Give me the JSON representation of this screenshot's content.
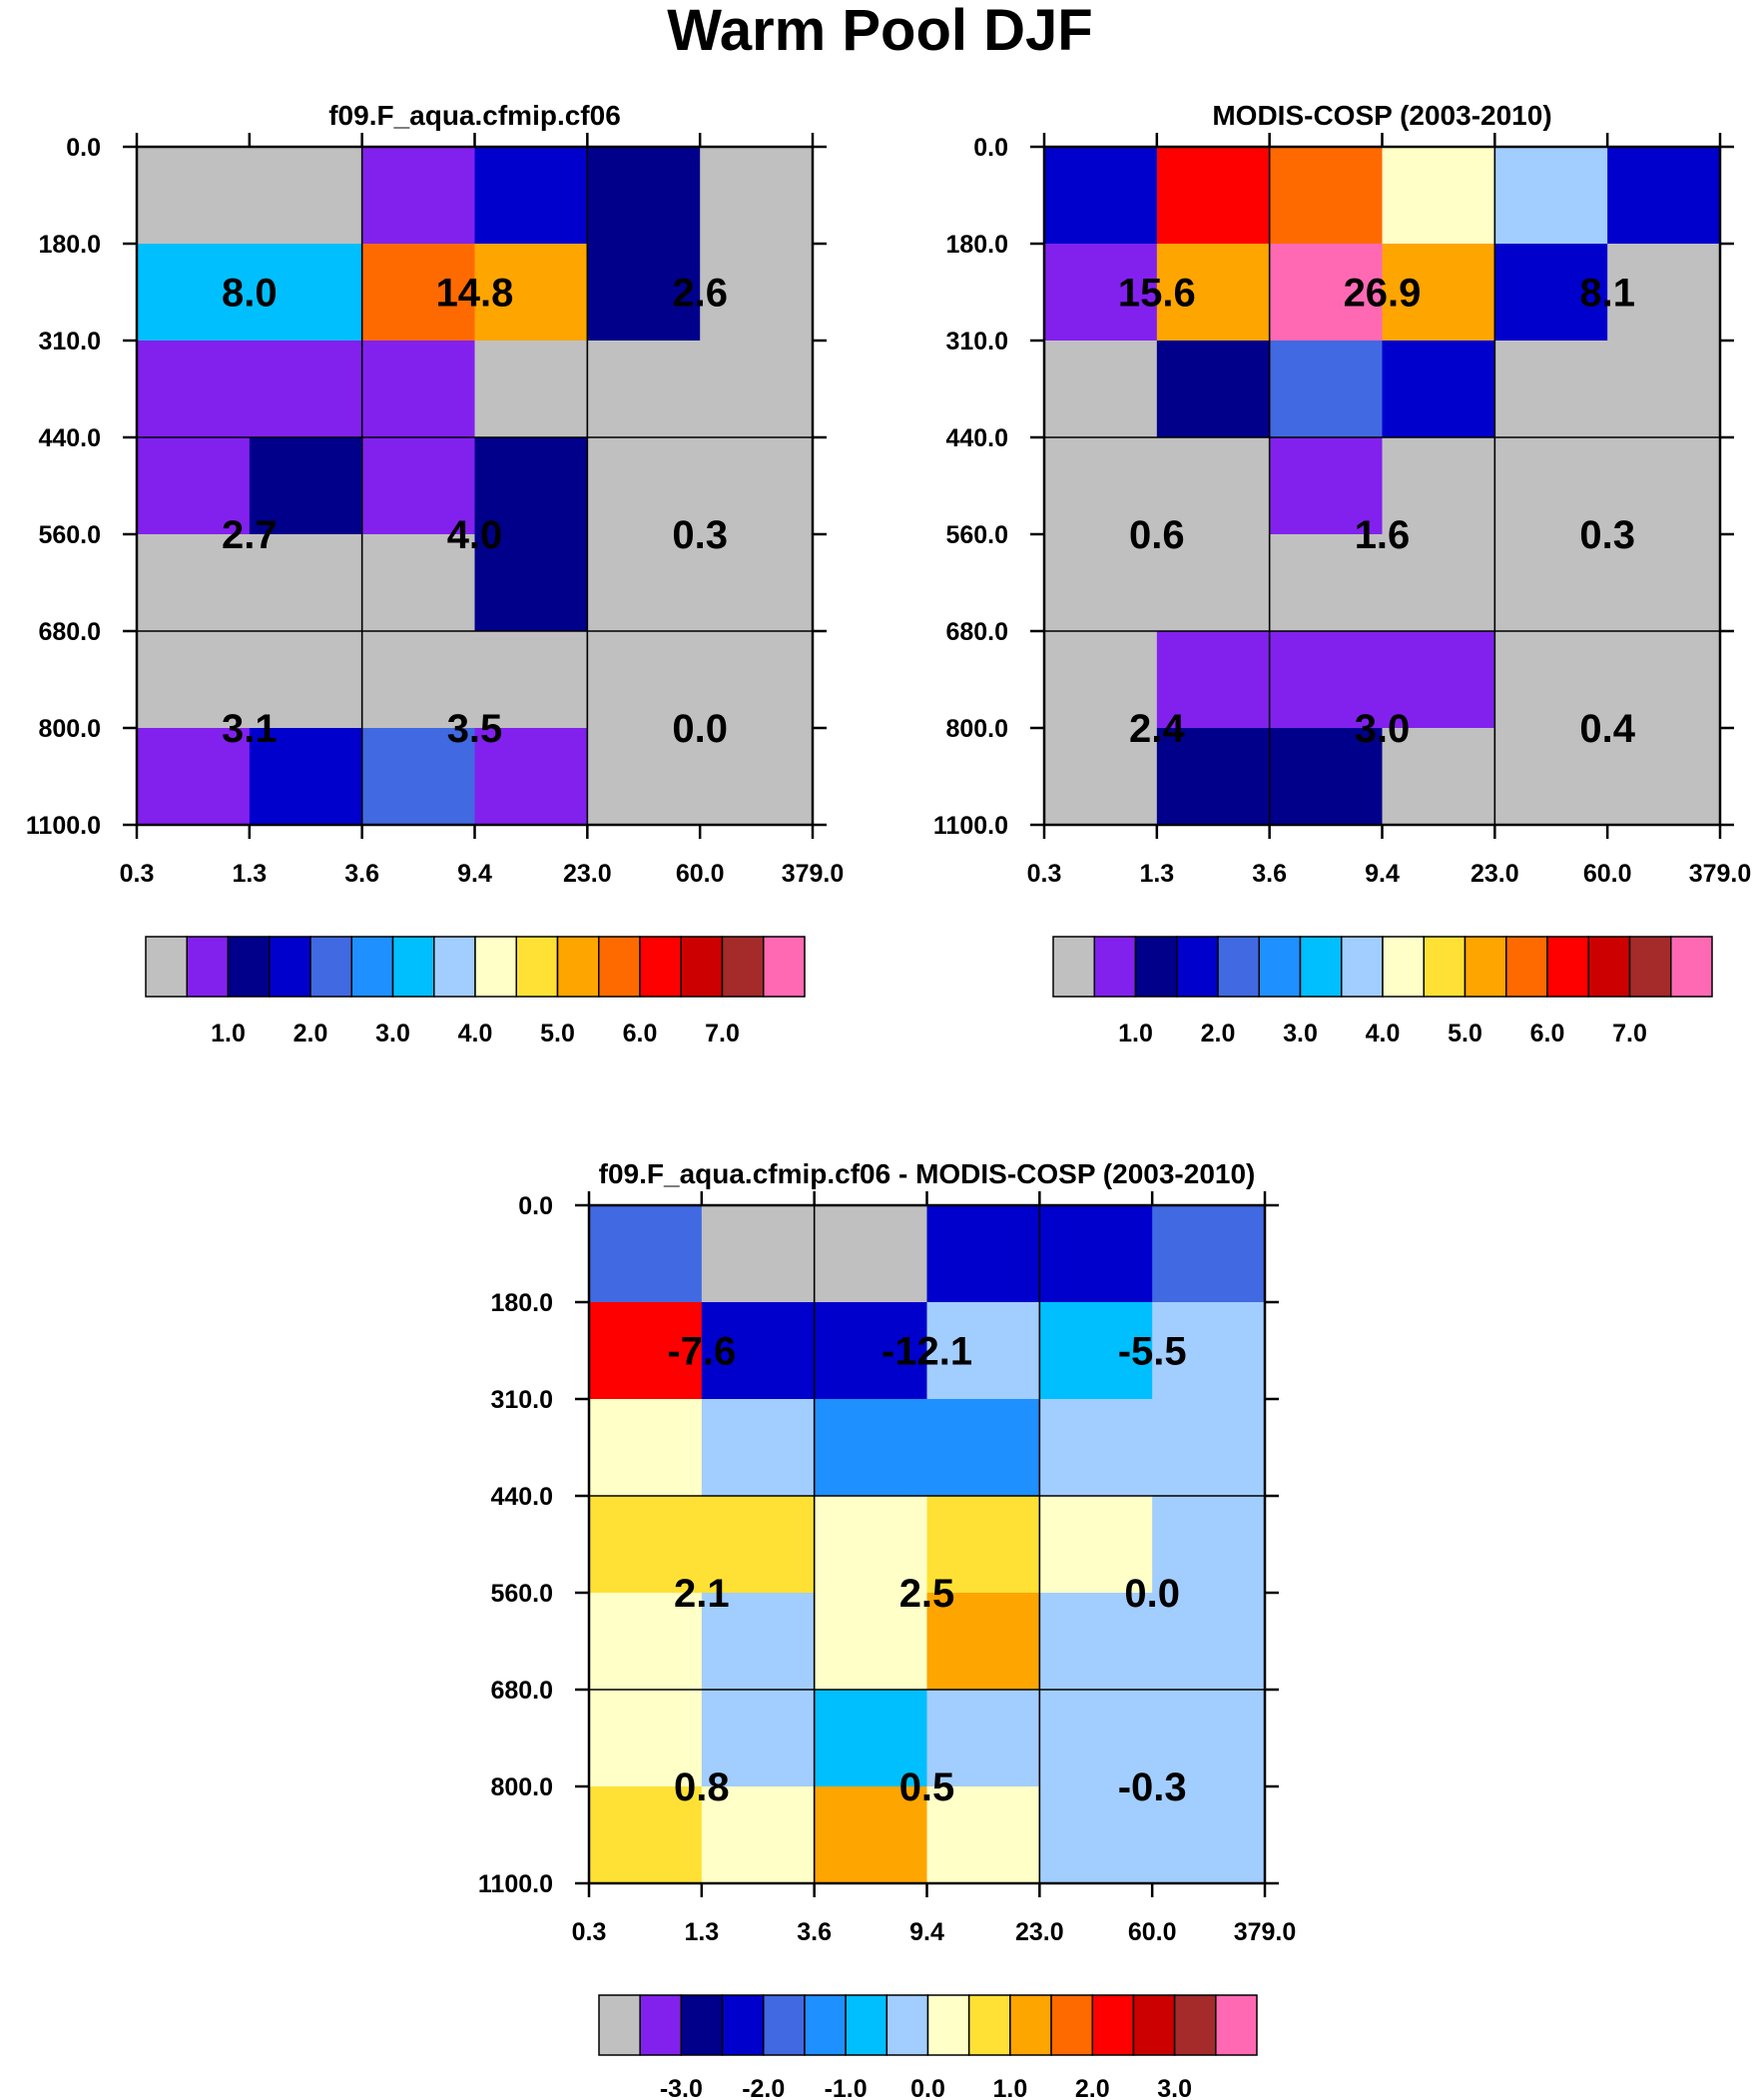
{
  "title": "Warm Pool DJF",
  "colors": {
    "gray": "#c0c0c0",
    "purple": "#8221ee",
    "navy": "#00008b",
    "blue": "#0000cd",
    "royal": "#4169e1",
    "dodger": "#1e90ff",
    "deepsky": "#00bfff",
    "lightblue": "#a2cdff",
    "cream": "#ffffc8",
    "yellow": "#ffe135",
    "orange": "#ffa500",
    "darkorange": "#ff6a00",
    "red": "#ff0000",
    "darkred": "#cd0000",
    "brown": "#a52a2a",
    "pink": "#ff69b4"
  },
  "chart_data": [
    {
      "type": "heatmap",
      "name": "model",
      "title": "f09.F_aqua.cfmip.cf06",
      "x_ticks": [
        "0.3",
        "1.3",
        "3.6",
        "9.4",
        "23.0",
        "60.0",
        "379.0"
      ],
      "y_ticks": [
        "0.0",
        "180.0",
        "310.0",
        "440.0",
        "560.0",
        "680.0",
        "800.0",
        "1100.0"
      ],
      "cells": [
        [
          "gray",
          "gray",
          "purple",
          "blue",
          "navy",
          "gray"
        ],
        [
          "deepsky",
          "deepsky",
          "darkorange",
          "orange",
          "navy",
          "gray"
        ],
        [
          "purple",
          "purple",
          "purple",
          "gray",
          "gray",
          "gray"
        ],
        [
          "purple",
          "navy",
          "purple",
          "navy",
          "gray",
          "gray"
        ],
        [
          "gray",
          "gray",
          "gray",
          "navy",
          "gray",
          "gray"
        ],
        [
          "gray",
          "gray",
          "gray",
          "gray",
          "gray",
          "gray"
        ],
        [
          "purple",
          "blue",
          "royal",
          "purple",
          "gray",
          "gray"
        ]
      ],
      "labels": [
        [
          "8.0",
          "14.8",
          "2.6"
        ],
        [
          "2.7",
          "4.0",
          "0.3"
        ],
        [
          "3.1",
          "3.5",
          "0.0"
        ]
      ],
      "colorbar": {
        "colors": [
          "gray",
          "purple",
          "navy",
          "blue",
          "royal",
          "dodger",
          "deepsky",
          "lightblue",
          "cream",
          "yellow",
          "orange",
          "darkorange",
          "red",
          "darkred",
          "brown",
          "pink"
        ],
        "labels": [
          "1.0",
          "2.0",
          "3.0",
          "4.0",
          "5.0",
          "6.0",
          "7.0"
        ],
        "label_boundaries": [
          2,
          4,
          6,
          8,
          10,
          12,
          14
        ]
      }
    },
    {
      "type": "heatmap",
      "name": "obs",
      "title": "MODIS-COSP (2003-2010)",
      "x_ticks": [
        "0.3",
        "1.3",
        "3.6",
        "9.4",
        "23.0",
        "60.0",
        "379.0"
      ],
      "y_ticks": [
        "0.0",
        "180.0",
        "310.0",
        "440.0",
        "560.0",
        "680.0",
        "800.0",
        "1100.0"
      ],
      "cells": [
        [
          "blue",
          "red",
          "darkorange",
          "cream",
          "lightblue",
          "blue"
        ],
        [
          "purple",
          "orange",
          "pink",
          "orange",
          "blue",
          "gray"
        ],
        [
          "gray",
          "navy",
          "royal",
          "blue",
          "gray",
          "gray"
        ],
        [
          "gray",
          "gray",
          "purple",
          "gray",
          "gray",
          "gray"
        ],
        [
          "gray",
          "gray",
          "gray",
          "gray",
          "gray",
          "gray"
        ],
        [
          "gray",
          "purple",
          "purple",
          "purple",
          "gray",
          "gray"
        ],
        [
          "gray",
          "navy",
          "navy",
          "gray",
          "gray",
          "gray"
        ]
      ],
      "labels": [
        [
          "15.6",
          "26.9",
          "8.1"
        ],
        [
          "0.6",
          "1.6",
          "0.3"
        ],
        [
          "2.4",
          "3.0",
          "0.4"
        ]
      ],
      "colorbar": {
        "colors": [
          "gray",
          "purple",
          "navy",
          "blue",
          "royal",
          "dodger",
          "deepsky",
          "lightblue",
          "cream",
          "yellow",
          "orange",
          "darkorange",
          "red",
          "darkred",
          "brown",
          "pink"
        ],
        "labels": [
          "1.0",
          "2.0",
          "3.0",
          "4.0",
          "5.0",
          "6.0",
          "7.0"
        ],
        "label_boundaries": [
          2,
          4,
          6,
          8,
          10,
          12,
          14
        ]
      }
    },
    {
      "type": "heatmap",
      "name": "diff",
      "title": "f09.F_aqua.cfmip.cf06 - MODIS-COSP (2003-2010)",
      "x_ticks": [
        "0.3",
        "1.3",
        "3.6",
        "9.4",
        "23.0",
        "60.0",
        "379.0"
      ],
      "y_ticks": [
        "0.0",
        "180.0",
        "310.0",
        "440.0",
        "560.0",
        "680.0",
        "800.0",
        "1100.0"
      ],
      "cells": [
        [
          "royal",
          "gray",
          "gray",
          "blue",
          "blue",
          "royal"
        ],
        [
          "red",
          "blue",
          "blue",
          "lightblue",
          "deepsky",
          "lightblue"
        ],
        [
          "cream",
          "lightblue",
          "dodger",
          "dodger",
          "lightblue",
          "lightblue"
        ],
        [
          "yellow",
          "yellow",
          "cream",
          "yellow",
          "cream",
          "lightblue"
        ],
        [
          "cream",
          "lightblue",
          "cream",
          "orange",
          "lightblue",
          "lightblue"
        ],
        [
          "cream",
          "lightblue",
          "deepsky",
          "lightblue",
          "lightblue",
          "lightblue"
        ],
        [
          "yellow",
          "cream",
          "orange",
          "cream",
          "lightblue",
          "lightblue"
        ]
      ],
      "labels": [
        [
          "-7.6",
          "-12.1",
          "-5.5"
        ],
        [
          "2.1",
          "2.5",
          "0.0"
        ],
        [
          "0.8",
          "0.5",
          "-0.3"
        ]
      ],
      "colorbar": {
        "colors": [
          "gray",
          "purple",
          "navy",
          "blue",
          "royal",
          "dodger",
          "deepsky",
          "lightblue",
          "cream",
          "yellow",
          "orange",
          "darkorange",
          "red",
          "darkred",
          "brown",
          "pink"
        ],
        "labels": [
          "-3.0",
          "-2.0",
          "-1.0",
          "0.0",
          "1.0",
          "2.0",
          "3.0"
        ],
        "label_boundaries": [
          2,
          4,
          6,
          8,
          10,
          12,
          14
        ]
      }
    }
  ]
}
